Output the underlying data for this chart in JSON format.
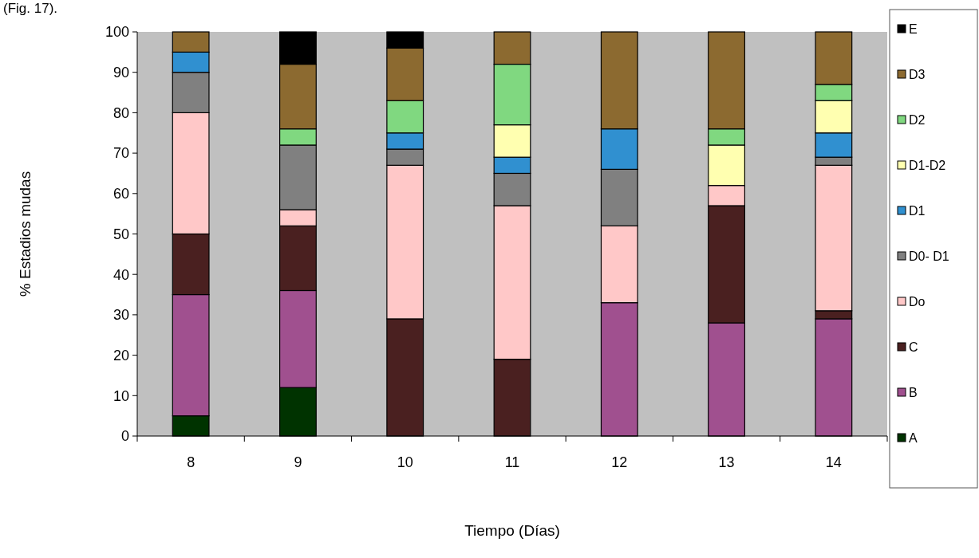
{
  "chart_data": {
    "type": "bar",
    "stacked": true,
    "xlabel": "Tiempo (Días)",
    "ylabel": "% Estadios mudas",
    "annotations": [
      "(Fig. 17)."
    ],
    "categories": [
      "8",
      "9",
      "10",
      "11",
      "12",
      "13",
      "14"
    ],
    "ylim": [
      0,
      100
    ],
    "yticks": [
      0,
      10,
      20,
      30,
      40,
      50,
      60,
      70,
      80,
      90,
      100
    ],
    "grid": false,
    "legend": "right",
    "series": [
      {
        "name": "A",
        "color": "#003300",
        "values": [
          5,
          12,
          0,
          0,
          0,
          0,
          0
        ]
      },
      {
        "name": "B",
        "color": "#a0508f",
        "values": [
          30,
          24,
          0,
          0,
          33,
          28,
          29
        ]
      },
      {
        "name": "C",
        "color": "#4a2020",
        "values": [
          15,
          16,
          29,
          19,
          0,
          29,
          2
        ]
      },
      {
        "name": "Do",
        "color": "#ffc8c8",
        "values": [
          30,
          4,
          38,
          38,
          19,
          5,
          36
        ]
      },
      {
        "name": "D0- D1",
        "color": "#808080",
        "values": [
          10,
          16,
          4,
          8,
          14,
          0,
          2
        ]
      },
      {
        "name": "D1",
        "color": "#3090d0",
        "values": [
          5,
          0,
          4,
          4,
          10,
          0,
          6
        ]
      },
      {
        "name": "D1-D2",
        "color": "#ffffb0",
        "values": [
          0,
          0,
          0,
          8,
          0,
          10,
          8
        ]
      },
      {
        "name": "D2",
        "color": "#80d880",
        "values": [
          0,
          4,
          8,
          15,
          0,
          4,
          4
        ]
      },
      {
        "name": "D3",
        "color": "#8c6a30",
        "values": [
          5,
          16,
          13,
          8,
          24,
          24,
          13
        ]
      },
      {
        "name": "E",
        "color": "#000000",
        "values": [
          0,
          8,
          4,
          0,
          0,
          0,
          0
        ]
      }
    ]
  }
}
